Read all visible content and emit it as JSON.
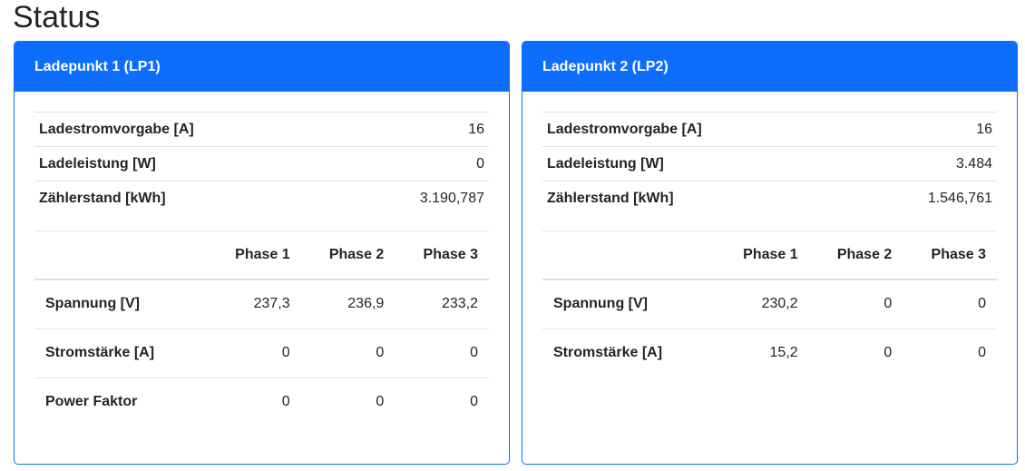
{
  "page": {
    "title": "Status"
  },
  "lp1": {
    "header": "Ladepunkt 1 (LP1)",
    "summary": [
      {
        "label": "Ladestromvorgabe [A]",
        "value": "16"
      },
      {
        "label": "Ladeleistung [W]",
        "value": "0"
      },
      {
        "label": "Zählerstand [kWh]",
        "value": "3.190,787"
      }
    ],
    "phase_headers": [
      "Phase 1",
      "Phase 2",
      "Phase 3"
    ],
    "rows": [
      {
        "label": "Spannung [V]",
        "values": [
          "237,3",
          "236,9",
          "233,2"
        ]
      },
      {
        "label": "Stromstärke [A]",
        "values": [
          "0",
          "0",
          "0"
        ]
      },
      {
        "label": "Power Faktor",
        "values": [
          "0",
          "0",
          "0"
        ]
      }
    ]
  },
  "lp2": {
    "header": "Ladepunkt 2 (LP2)",
    "summary": [
      {
        "label": "Ladestromvorgabe [A]",
        "value": "16"
      },
      {
        "label": "Ladeleistung [W]",
        "value": "3.484"
      },
      {
        "label": "Zählerstand [kWh]",
        "value": "1.546,761"
      }
    ],
    "phase_headers": [
      "Phase 1",
      "Phase 2",
      "Phase 3"
    ],
    "rows": [
      {
        "label": "Spannung [V]",
        "values": [
          "230,2",
          "0",
          "0"
        ]
      },
      {
        "label": "Stromstärke [A]",
        "values": [
          "15,2",
          "0",
          "0"
        ]
      }
    ]
  },
  "colors": {
    "accent": "#0d6efd",
    "border": "#dee2e6",
    "text": "#212529"
  }
}
